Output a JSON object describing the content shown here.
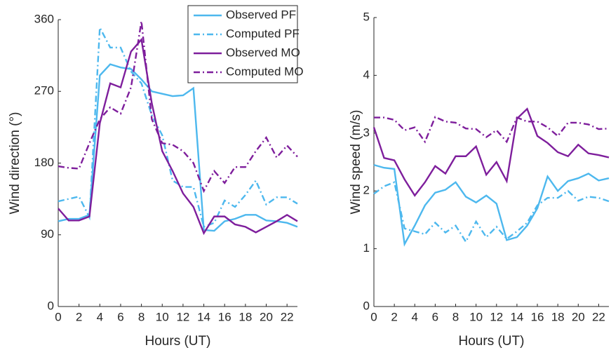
{
  "chart_data": [
    {
      "type": "line",
      "xlabel": "Hours (UT)",
      "ylabel": "Wind direction (°)",
      "x": [
        0,
        1,
        2,
        3,
        4,
        5,
        6,
        7,
        8,
        9,
        10,
        11,
        12,
        13,
        14,
        15,
        16,
        17,
        18,
        19,
        20,
        21,
        22,
        23
      ],
      "xlim": [
        0,
        23
      ],
      "xticks": [
        0,
        2,
        4,
        6,
        8,
        10,
        12,
        14,
        16,
        18,
        20,
        22
      ],
      "ylim": [
        0,
        360
      ],
      "yticks": [
        0,
        90,
        180,
        270,
        360
      ],
      "legend": "upper right",
      "series": [
        {
          "name": "Observed PF",
          "color": "#4db8ee",
          "dash": "solid",
          "values": [
            107,
            110,
            110,
            115,
            290,
            304,
            300,
            298,
            285,
            270,
            267,
            264,
            265,
            274,
            96,
            95,
            107,
            110,
            115,
            115,
            108,
            107,
            105,
            100
          ]
        },
        {
          "name": "Computed PF",
          "color": "#4db8ee",
          "dash": "dashdot",
          "values": [
            132,
            135,
            138,
            112,
            350,
            325,
            325,
            295,
            280,
            240,
            215,
            158,
            150,
            150,
            100,
            105,
            133,
            125,
            140,
            158,
            128,
            137,
            137,
            129
          ]
        },
        {
          "name": "Observed MO",
          "color": "#7e1e9c",
          "dash": "solid",
          "values": [
            123,
            108,
            108,
            113,
            230,
            280,
            275,
            320,
            335,
            255,
            195,
            170,
            142,
            125,
            92,
            113,
            113,
            103,
            100,
            93,
            100,
            107,
            115,
            107
          ]
        },
        {
          "name": "Computed MO",
          "color": "#7e1e9c",
          "dash": "dashdot",
          "values": [
            176,
            174,
            173,
            205,
            235,
            250,
            242,
            275,
            358,
            235,
            205,
            203,
            195,
            180,
            145,
            170,
            155,
            175,
            175,
            195,
            212,
            187,
            202,
            188
          ]
        }
      ]
    },
    {
      "type": "line",
      "xlabel": "Hours (UT)",
      "ylabel": "Wind speed (m/s)",
      "x": [
        0,
        1,
        2,
        3,
        4,
        5,
        6,
        7,
        8,
        9,
        10,
        11,
        12,
        13,
        14,
        15,
        16,
        17,
        18,
        19,
        20,
        21,
        22,
        23
      ],
      "xlim": [
        0,
        23
      ],
      "xticks": [
        0,
        2,
        4,
        6,
        8,
        10,
        12,
        14,
        16,
        18,
        20,
        22
      ],
      "ylim": [
        0,
        5
      ],
      "yticks": [
        0,
        1,
        2,
        3,
        4,
        5
      ],
      "series": [
        {
          "color": "#4db8ee",
          "dash": "solid",
          "values": [
            2.45,
            2.4,
            2.38,
            1.08,
            1.4,
            1.75,
            1.97,
            2.02,
            2.15,
            1.9,
            1.8,
            1.92,
            1.78,
            1.15,
            1.2,
            1.4,
            1.7,
            2.25,
            2.0,
            2.17,
            2.22,
            2.3,
            2.18,
            2.22
          ]
        },
        {
          "color": "#4db8ee",
          "dash": "dashdot",
          "values": [
            1.95,
            2.08,
            2.15,
            1.35,
            1.3,
            1.25,
            1.45,
            1.28,
            1.4,
            1.12,
            1.47,
            1.2,
            1.38,
            1.17,
            1.3,
            1.45,
            1.75,
            1.88,
            1.88,
            2.0,
            1.83,
            1.9,
            1.88,
            1.82
          ]
        },
        {
          "color": "#7e1e9c",
          "dash": "solid",
          "values": [
            3.1,
            2.57,
            2.53,
            2.2,
            1.92,
            2.15,
            2.43,
            2.3,
            2.6,
            2.6,
            2.77,
            2.28,
            2.5,
            2.17,
            3.25,
            3.42,
            2.95,
            2.83,
            2.67,
            2.6,
            2.8,
            2.65,
            2.62,
            2.58
          ]
        },
        {
          "color": "#7e1e9c",
          "dash": "dashdot",
          "values": [
            3.27,
            3.27,
            3.23,
            3.05,
            3.1,
            2.85,
            3.28,
            3.2,
            3.18,
            3.08,
            3.07,
            2.93,
            3.05,
            2.85,
            3.27,
            3.2,
            3.2,
            3.1,
            2.95,
            3.18,
            3.18,
            3.15,
            3.07,
            3.08
          ]
        }
      ]
    }
  ]
}
